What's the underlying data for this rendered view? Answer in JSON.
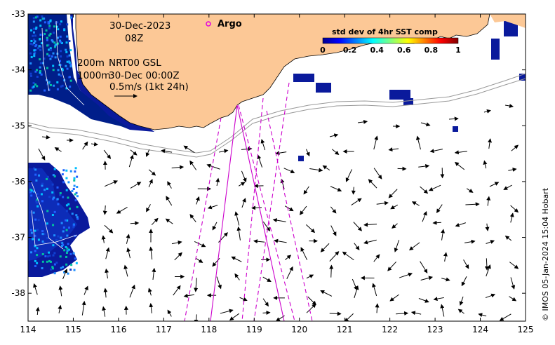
{
  "map": {
    "date_line": "30-Dec-2023",
    "time_line": "08Z",
    "depth_200": "200m",
    "depth_1000": "1000m",
    "product_line": "NRT00 GSL",
    "product_time": "30-Dec 00:00Z",
    "vector_scale": "0.5m/s (1kt 24h)",
    "argo_label": "Argo",
    "credit": "© IMOS 05-Jan-2024 15:04 Hobart",
    "colors": {
      "land": "#fcc896",
      "ocean": "#ffffff",
      "argo": "#e000e0",
      "tracks": "#cc00cc",
      "isobath": "#999999"
    }
  },
  "colorbar": {
    "title": "std dev of 4hr SST comp",
    "ticks": [
      "0",
      "0.2",
      "0.4",
      "0.6",
      "0.8",
      "1"
    ],
    "colormap": "jet"
  },
  "axes": {
    "x_ticks": [
      "114",
      "115",
      "116",
      "117",
      "118",
      "119",
      "120",
      "121",
      "122",
      "123",
      "124",
      "125"
    ],
    "y_ticks": [
      "-33",
      "-34",
      "-35",
      "-36",
      "-37",
      "-38"
    ],
    "x_range": [
      114,
      125
    ],
    "y_range": [
      -38.5,
      -33
    ]
  }
}
